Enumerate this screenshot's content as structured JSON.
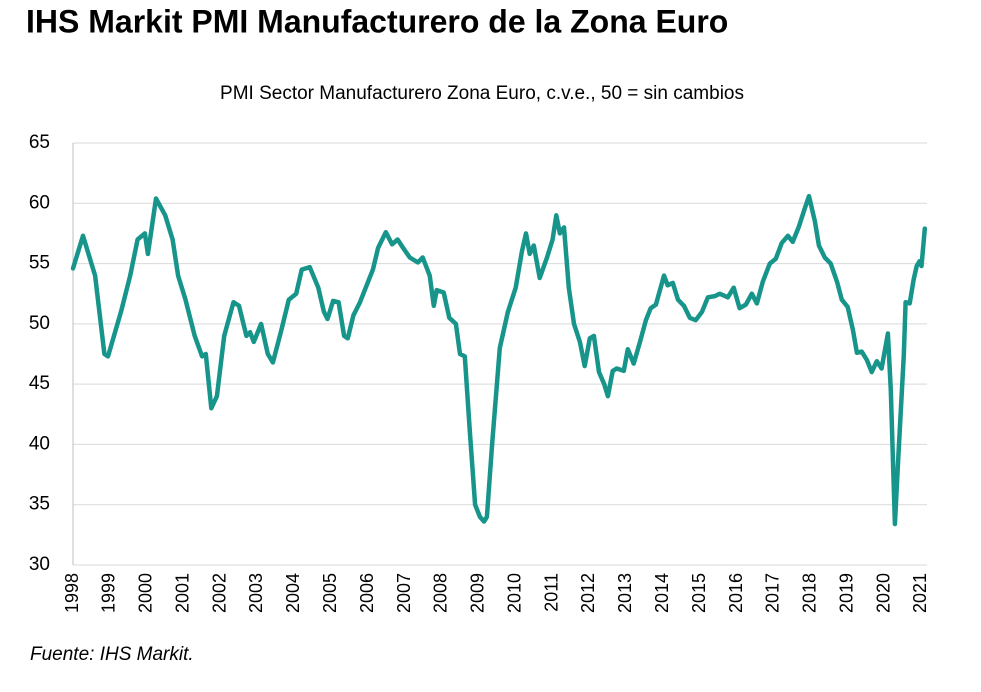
{
  "chart_data": {
    "type": "line",
    "title": "IHS Markit PMI Manufacturero de la Zona Euro",
    "subtitle": "PMI Sector Manufacturero Zona Euro, c.v.e., 50 = sin cambios",
    "source": "Fuente: IHS Markit.",
    "x": [
      1998.0,
      1998.27,
      1998.6,
      1998.85,
      1998.95,
      1999.3,
      1999.55,
      1999.75,
      1999.95,
      2000.03,
      2000.25,
      2000.5,
      2000.7,
      2000.85,
      2001.05,
      2001.3,
      2001.5,
      2001.6,
      2001.75,
      2001.9,
      2002.1,
      2002.35,
      2002.5,
      2002.7,
      2002.8,
      2002.9,
      2003.1,
      2003.28,
      2003.42,
      2003.65,
      2003.85,
      2004.05,
      2004.2,
      2004.42,
      2004.65,
      2004.8,
      2004.9,
      2005.05,
      2005.2,
      2005.35,
      2005.45,
      2005.6,
      2005.78,
      2006.0,
      2006.13,
      2006.27,
      2006.48,
      2006.65,
      2006.8,
      2006.97,
      2007.13,
      2007.35,
      2007.48,
      2007.67,
      2007.78,
      2007.86,
      2008.05,
      2008.2,
      2008.38,
      2008.49,
      2008.62,
      2008.76,
      2008.9,
      2009.03,
      2009.14,
      2009.22,
      2009.36,
      2009.57,
      2009.79,
      2010.0,
      2010.17,
      2010.28,
      2010.38,
      2010.49,
      2010.65,
      2010.85,
      2011.0,
      2011.1,
      2011.2,
      2011.31,
      2011.44,
      2011.58,
      2011.74,
      2011.87,
      2012.01,
      2012.12,
      2012.26,
      2012.4,
      2012.5,
      2012.63,
      2012.74,
      2012.93,
      2013.04,
      2013.2,
      2013.37,
      2013.53,
      2013.66,
      2013.8,
      2014.02,
      2014.12,
      2014.26,
      2014.4,
      2014.56,
      2014.72,
      2014.88,
      2015.05,
      2015.21,
      2015.4,
      2015.53,
      2015.75,
      2015.91,
      2016.07,
      2016.24,
      2016.4,
      2016.54,
      2016.7,
      2016.89,
      2017.05,
      2017.21,
      2017.38,
      2017.51,
      2017.67,
      2017.84,
      2017.95,
      2018.11,
      2018.22,
      2018.38,
      2018.54,
      2018.71,
      2018.84,
      2019.0,
      2019.14,
      2019.25,
      2019.38,
      2019.52,
      2019.65,
      2019.79,
      2019.92,
      2020.09,
      2020.17,
      2020.28,
      2020.38,
      2020.52,
      2020.57,
      2020.68,
      2020.79,
      2020.87,
      2020.95,
      2021.0,
      2021.09
    ],
    "series": [
      {
        "color": "#17958a",
        "values": [
          54.6,
          57.3,
          54,
          47.5,
          47.3,
          51,
          54,
          57,
          57.5,
          55.8,
          60.4,
          59,
          57,
          54,
          52,
          49,
          47.3,
          47.5,
          43,
          44,
          49,
          51.8,
          51.5,
          49,
          49.3,
          48.5,
          50,
          47.5,
          46.8,
          49.5,
          52,
          52.5,
          54.5,
          54.7,
          53,
          51,
          50.4,
          51.9,
          51.8,
          49,
          48.8,
          50.7,
          51.8,
          53.5,
          54.5,
          56.3,
          57.6,
          56.6,
          57,
          56.2,
          55.5,
          55.1,
          55.5,
          54,
          51.5,
          52.8,
          52.6,
          50.5,
          50,
          47.5,
          47.3,
          41,
          35,
          34,
          33.6,
          34,
          40,
          48,
          51,
          53,
          56,
          57.5,
          55.8,
          56.5,
          53.8,
          55.5,
          57,
          59,
          57.5,
          58,
          53,
          50,
          48.5,
          46.5,
          48.8,
          49,
          46,
          45,
          44,
          46.1,
          46.3,
          46.1,
          47.9,
          46.7,
          48.5,
          50.3,
          51.3,
          51.6,
          54,
          53.2,
          53.4,
          52,
          51.5,
          50.5,
          50.3,
          51,
          52.2,
          52.3,
          52.5,
          52.2,
          53,
          51.3,
          51.6,
          52.5,
          51.7,
          53.5,
          55,
          55.4,
          56.7,
          57.3,
          56.8,
          58,
          59.6,
          60.6,
          58.5,
          56.5,
          55.5,
          55,
          53.5,
          52,
          51.4,
          49.5,
          47.6,
          47.7,
          47,
          46,
          46.9,
          46.3,
          49.2,
          44.5,
          33.4,
          39.4,
          47.4,
          51.8,
          51.7,
          53.7,
          54.8,
          55.2,
          54.8,
          57.9
        ]
      }
    ],
    "xlim": [
      1998,
      2021.15
    ],
    "xticks": [
      1998,
      1999,
      2000,
      2001,
      2002,
      2003,
      2004,
      2005,
      2006,
      2007,
      2008,
      2009,
      2010,
      2011,
      2012,
      2013,
      2014,
      2015,
      2016,
      2017,
      2018,
      2019,
      2020,
      2021
    ],
    "ylim": [
      30,
      65
    ],
    "yticks": [
      30,
      35,
      40,
      45,
      50,
      55,
      60,
      65
    ],
    "grid": true
  }
}
